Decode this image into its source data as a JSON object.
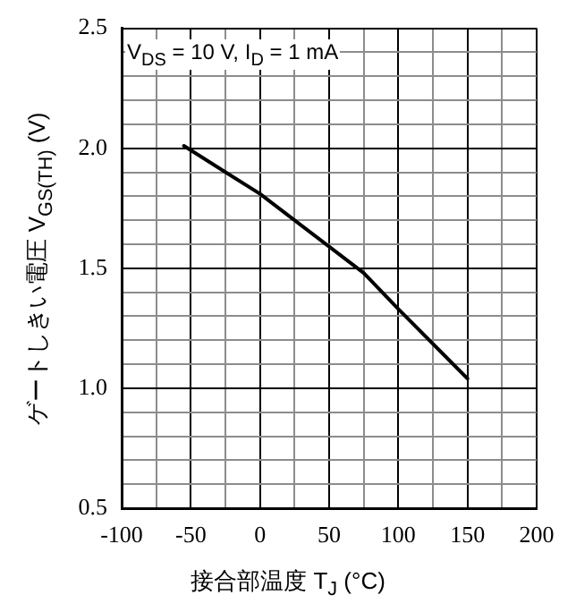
{
  "chart_data": {
    "type": "line",
    "xlabel": "接合部温度 T$_{J}$ (°C)",
    "ylabel": "ゲートしきい電圧 V$_{GS(TH)}$ (V)",
    "annotations": [
      "V$_{DS}$ = 10 V, I$_{D}$ = 1 mA"
    ],
    "series": [
      {
        "color": "#000000",
        "x": [
          -55,
          0,
          50,
          75,
          100,
          150
        ],
        "values": [
          2.01,
          1.81,
          1.59,
          1.48,
          1.33,
          1.04
        ]
      }
    ],
    "xlim": [
      -100,
      200
    ],
    "xticks": [
      -100,
      {
        "value": -75,
        "label": null
      },
      -50,
      {
        "value": -25,
        "label": null
      },
      0,
      {
        "value": 25,
        "label": null
      },
      50,
      {
        "value": 75,
        "label": null
      },
      100,
      {
        "value": 125,
        "label": null
      },
      150,
      {
        "value": 175,
        "label": null
      },
      200
    ],
    "ylim": [
      0.5,
      2.5
    ],
    "yticks": [
      {
        "value": 0.5,
        "label": "0.5"
      },
      {
        "value": 0.6,
        "label": null
      },
      {
        "value": 0.7,
        "label": null
      },
      {
        "value": 0.8,
        "label": null
      },
      {
        "value": 0.9,
        "label": null
      },
      {
        "value": 1.0,
        "label": "1.0"
      },
      {
        "value": 1.1,
        "label": null
      },
      {
        "value": 1.2,
        "label": null
      },
      {
        "value": 1.3,
        "label": null
      },
      {
        "value": 1.4,
        "label": null
      },
      {
        "value": 1.5,
        "label": "1.5"
      },
      {
        "value": 1.6,
        "label": null
      },
      {
        "value": 1.7,
        "label": null
      },
      {
        "value": 1.8,
        "label": null
      },
      {
        "value": 1.9,
        "label": null
      },
      {
        "value": 2.0,
        "label": "2.0"
      },
      {
        "value": 2.1,
        "label": null
      },
      {
        "value": 2.2,
        "label": null
      },
      {
        "value": 2.3,
        "label": null
      },
      {
        "value": 2.4,
        "label": null
      },
      {
        "value": 2.5,
        "label": "2.5"
      }
    ],
    "grid": true,
    "legend": false,
    "marker": "none",
    "line_style": "solid"
  }
}
